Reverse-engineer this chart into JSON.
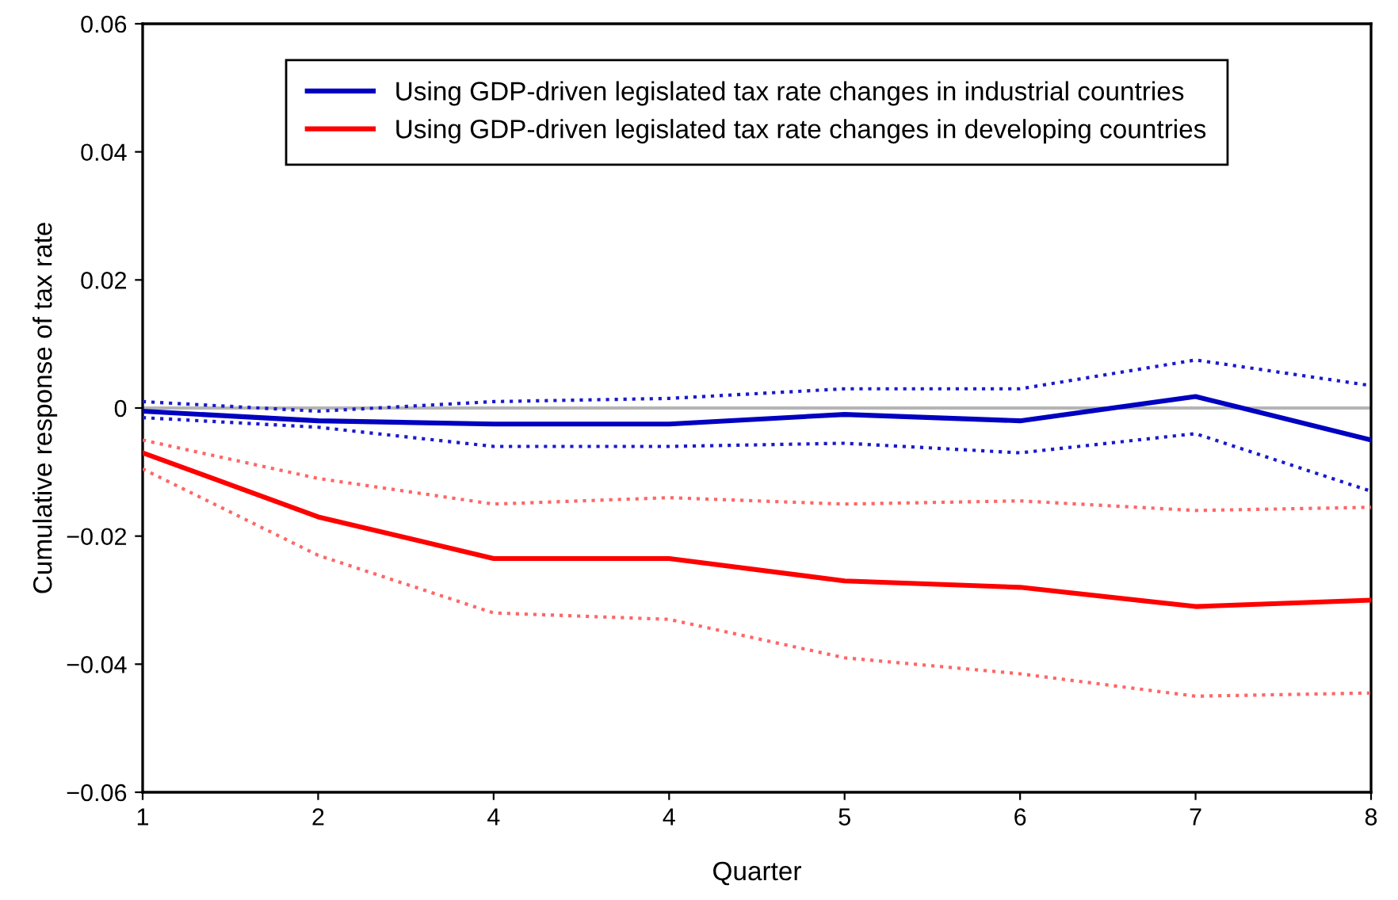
{
  "chart_data": {
    "type": "line",
    "xlabel": "Quarter",
    "ylabel": "Cumulative response of tax rate",
    "categories": [
      "1",
      "2",
      "4",
      "4",
      "5",
      "6",
      "7",
      "8"
    ],
    "series": [
      {
        "name": "Using GDP-driven legislated tax rate changes in industrial countries",
        "color": "#0000c0",
        "line_style": "solid",
        "values": [
          -0.0005,
          -0.002,
          -0.0025,
          -0.0025,
          -0.001,
          -0.002,
          0.0018,
          -0.005
        ]
      },
      {
        "color": "#1a1acc",
        "line_style": "dotted",
        "values": [
          0.001,
          -0.0005,
          0.001,
          0.0015,
          0.003,
          0.003,
          0.0075,
          0.0035
        ]
      },
      {
        "color": "#1a1acc",
        "line_style": "dotted",
        "values": [
          -0.0015,
          -0.003,
          -0.006,
          -0.006,
          -0.0055,
          -0.007,
          -0.004,
          -0.013
        ]
      },
      {
        "name": "Using GDP-driven legislated tax rate changes in developing countries",
        "color": "#ff0000",
        "line_style": "solid",
        "values": [
          -0.007,
          -0.017,
          -0.0235,
          -0.0235,
          -0.027,
          -0.028,
          -0.031,
          -0.03
        ]
      },
      {
        "color": "#ff6666",
        "line_style": "dotted",
        "values": [
          -0.005,
          -0.011,
          -0.015,
          -0.014,
          -0.015,
          -0.0145,
          -0.016,
          -0.0155
        ]
      },
      {
        "color": "#ff6666",
        "line_style": "dotted",
        "values": [
          -0.0095,
          -0.023,
          -0.032,
          -0.033,
          -0.039,
          -0.0415,
          -0.045,
          -0.0445
        ]
      }
    ],
    "ylim": [
      -0.06,
      0.06
    ],
    "yticks": [
      {
        "value": -0.06,
        "label": "−0.06"
      },
      {
        "value": -0.04,
        "label": "−0.04"
      },
      {
        "value": -0.02,
        "label": "−0.02"
      },
      0,
      0.02,
      0.04,
      0.06
    ],
    "ref_lines": [
      {
        "axis": "y",
        "value": 0,
        "color": "#b4b4b4",
        "line_style": "solid"
      }
    ],
    "grid": false,
    "legend": "top",
    "marker": "none"
  }
}
